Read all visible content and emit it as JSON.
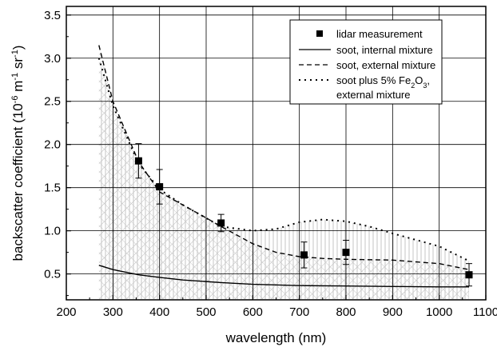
{
  "chart_data": {
    "type": "line",
    "xlabel": "wavelength (nm)",
    "ylabel_main": "backscatter coefficient (10",
    "ylabel_sup1": "-6",
    "ylabel_mid": " m",
    "ylabel_sup2": "-1",
    "ylabel_mid2": " sr",
    "ylabel_sup3": "-1",
    "ylabel_end": ")",
    "xlim": [
      200,
      1100
    ],
    "ylim": [
      0.2,
      3.6
    ],
    "xticks": [
      200,
      300,
      400,
      500,
      600,
      700,
      800,
      900,
      1000,
      1100
    ],
    "yticks": [
      0.5,
      1.0,
      1.5,
      2.0,
      2.5,
      3.0,
      3.5
    ],
    "ytick_labels": [
      "0.5",
      "1.0",
      "1.5",
      "2.0",
      "2.5",
      "3.0",
      "3.5"
    ],
    "grid": true,
    "legend_position": "top-right",
    "legend": {
      "lidar": "lidar measurement",
      "internal": "soot, internal mixture",
      "external": "soot, external mixture",
      "fe_line1_a": "soot plus 5% Fe",
      "fe_line1_sub": "2",
      "fe_line1_b": "O",
      "fe_line1_sub2": "3",
      "fe_line1_c": ",",
      "fe_line2": "external mixture"
    },
    "lidar_measurement": {
      "x": [
        355,
        400,
        532,
        710,
        800,
        1064
      ],
      "y": [
        1.81,
        1.51,
        1.09,
        0.72,
        0.75,
        0.49
      ],
      "err": [
        0.2,
        0.2,
        0.1,
        0.15,
        0.14,
        0.13
      ]
    },
    "series": [
      {
        "name": "soot, internal mixture",
        "x": [
          270,
          300,
          355,
          400,
          450,
          532,
          600,
          700,
          800,
          900,
          1000,
          1064
        ],
        "y": [
          0.6,
          0.55,
          0.49,
          0.46,
          0.43,
          0.4,
          0.38,
          0.365,
          0.36,
          0.355,
          0.35,
          0.35
        ]
      },
      {
        "name": "soot, external mixture",
        "x": [
          270,
          300,
          355,
          400,
          450,
          500,
          532,
          600,
          650,
          700,
          750,
          800,
          900,
          1000,
          1064
        ],
        "y": [
          3.15,
          2.5,
          1.8,
          1.45,
          1.3,
          1.15,
          1.05,
          0.85,
          0.75,
          0.7,
          0.68,
          0.67,
          0.66,
          0.62,
          0.55
        ]
      },
      {
        "name": "soot plus 5% Fe2O3, external mixture",
        "x": [
          270,
          300,
          355,
          400,
          450,
          532,
          600,
          650,
          700,
          750,
          800,
          850,
          900,
          1000,
          1064
        ],
        "y": [
          3.0,
          2.45,
          1.78,
          1.48,
          1.3,
          1.05,
          1.0,
          1.02,
          1.1,
          1.13,
          1.11,
          1.05,
          0.97,
          0.82,
          0.65
        ]
      }
    ]
  }
}
